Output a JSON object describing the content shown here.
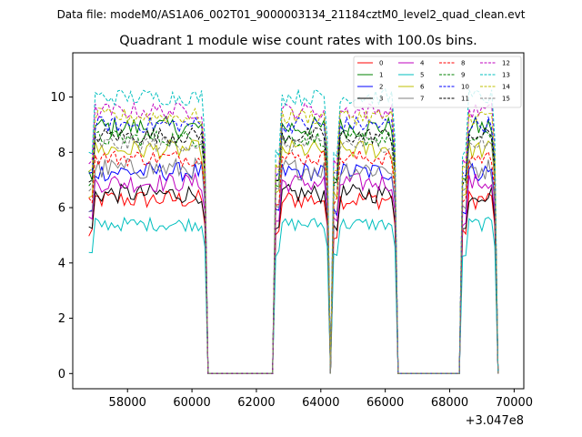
{
  "suptitle": "Data file: modeM0/AS1A06_002T01_9000003134_21184cztM0_level2_quad_clean.evt",
  "chart_data": {
    "type": "line",
    "title": "Quadrant 1 module wise count rates with 100.0s bins.",
    "xlabel": "",
    "ylabel": "",
    "x_offset_label": "+3.047e8",
    "xlim": [
      56300,
      70300
    ],
    "ylim": [
      -0.55,
      11.6
    ],
    "x_ticks": [
      58000,
      60000,
      62000,
      64000,
      66000,
      68000,
      70000
    ],
    "x_tick_labels": [
      "58000",
      "60000",
      "62000",
      "64000",
      "66000",
      "68000",
      "70000"
    ],
    "y_ticks": [
      0,
      2,
      4,
      6,
      8,
      10
    ],
    "y_tick_labels": [
      "0",
      "2",
      "4",
      "6",
      "8",
      "10"
    ],
    "grid": false,
    "legend_placement": "top-right",
    "segments": [
      {
        "start": 56800,
        "end": 60400
      },
      {
        "start": 62600,
        "end": 64200
      },
      {
        "start": 64400,
        "end": 66300
      },
      {
        "start": 68400,
        "end": 69400
      }
    ],
    "zero_level": 0,
    "series": [
      {
        "name": "0",
        "level": 6.3,
        "noise": 0.35,
        "color": "#ff0000",
        "dash": "solid"
      },
      {
        "name": "1",
        "level": 8.9,
        "noise": 0.4,
        "color": "#008000",
        "dash": "solid"
      },
      {
        "name": "2",
        "level": 7.3,
        "noise": 0.35,
        "color": "#0000ff",
        "dash": "solid"
      },
      {
        "name": "3",
        "level": 6.5,
        "noise": 0.35,
        "color": "#000000",
        "dash": "solid"
      },
      {
        "name": "4",
        "level": 6.9,
        "noise": 0.35,
        "color": "#bf00bf",
        "dash": "solid"
      },
      {
        "name": "5",
        "level": 5.4,
        "noise": 0.25,
        "color": "#00bfbf",
        "dash": "solid"
      },
      {
        "name": "6",
        "level": 8.1,
        "noise": 0.35,
        "color": "#bfbf00",
        "dash": "solid"
      },
      {
        "name": "7",
        "level": 7.4,
        "noise": 0.4,
        "color": "#808080",
        "dash": "solid"
      },
      {
        "name": "8",
        "level": 7.8,
        "noise": 0.3,
        "color": "#ff0000",
        "dash": "dashed"
      },
      {
        "name": "9",
        "level": 8.5,
        "noise": 0.3,
        "color": "#008000",
        "dash": "dashed"
      },
      {
        "name": "10",
        "level": 9.0,
        "noise": 0.3,
        "color": "#0000ff",
        "dash": "dashed"
      },
      {
        "name": "11",
        "level": 8.6,
        "noise": 0.3,
        "color": "#000000",
        "dash": "dashed"
      },
      {
        "name": "12",
        "level": 9.5,
        "noise": 0.3,
        "color": "#bf00bf",
        "dash": "dashed"
      },
      {
        "name": "13",
        "level": 10.0,
        "noise": 0.3,
        "color": "#00bfbf",
        "dash": "dashed"
      },
      {
        "name": "14",
        "level": 9.3,
        "noise": 0.3,
        "color": "#bfbf00",
        "dash": "dashed"
      },
      {
        "name": "15",
        "level": 8.3,
        "noise": 0.3,
        "color": "#808080",
        "dash": "dashed"
      }
    ]
  }
}
